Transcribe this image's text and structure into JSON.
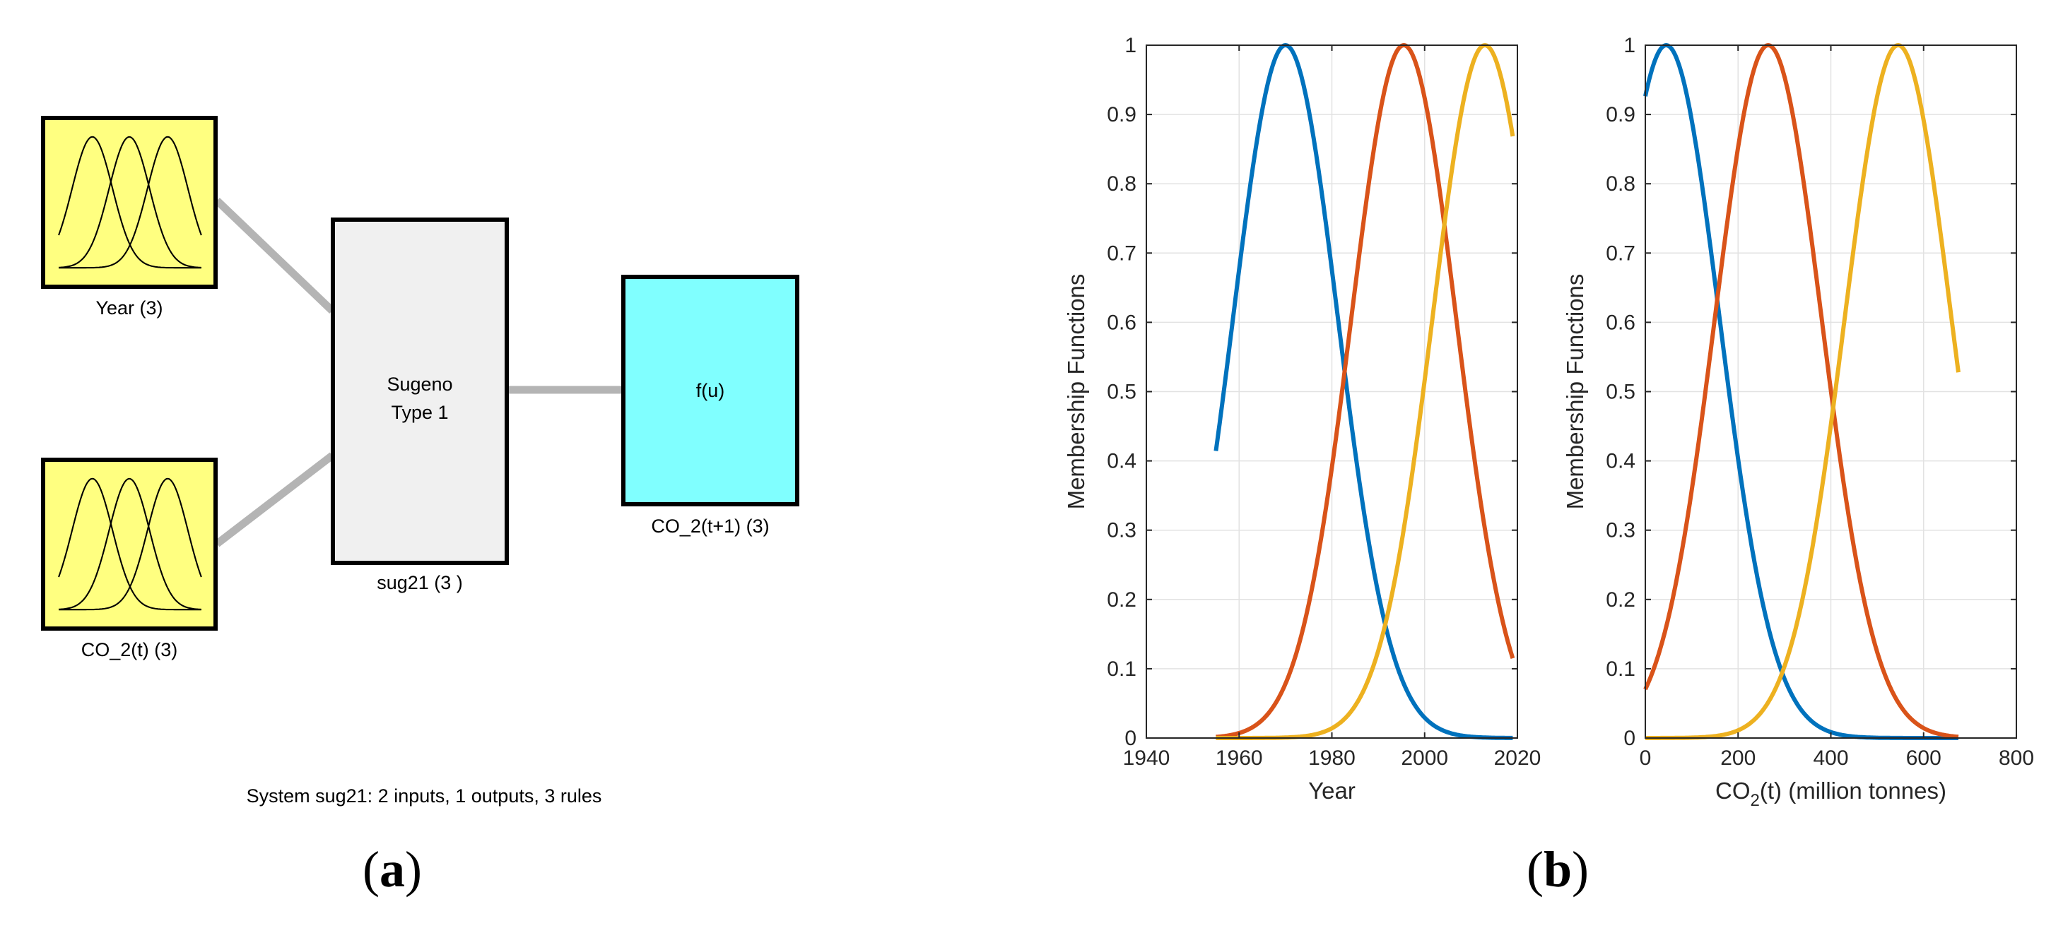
{
  "panel_a": {
    "label_open": "(",
    "label_letter": "a",
    "label_close": ")",
    "inputs": [
      {
        "name": "Year (3)",
        "icon": "membership-functions-icon"
      },
      {
        "name": "CO_2(t) (3)",
        "icon": "membership-functions-icon"
      }
    ],
    "engine": {
      "line1": "Sugeno",
      "line2": "Type 1",
      "name": "sug21 (3 )"
    },
    "output": {
      "function": "f(u)",
      "name": "CO_2(t+1) (3)"
    },
    "summary": "System sug21: 2 inputs, 1 outputs, 3 rules",
    "colors": {
      "input_fill": "#ffff80",
      "engine_fill": "#f0f0f0",
      "output_fill": "#80ffff",
      "connector": "#b4b4b4"
    }
  },
  "panel_b": {
    "label_open": "(",
    "label_letter": "b",
    "label_close": ")"
  },
  "chart_data": [
    {
      "type": "line",
      "xlabel": "Year",
      "ylabel": "Membership Functions",
      "xlim": [
        1940,
        2020
      ],
      "ylim": [
        0,
        1
      ],
      "xticks": [
        1940,
        1960,
        1980,
        2000,
        2020
      ],
      "yticks": [
        0,
        0.1,
        0.2,
        0.3,
        0.4,
        0.5,
        0.6,
        0.7,
        0.8,
        0.9,
        1
      ],
      "ytick_labels": [
        "0",
        "0.1",
        "0.2",
        "0.3",
        "0.4",
        "0.5",
        "0.6",
        "0.7",
        "0.8",
        "0.9",
        "1"
      ],
      "grid": true,
      "x_domain": [
        1955,
        2019
      ],
      "series": [
        {
          "color": "#0072bd",
          "shape": "gaussian",
          "center": 1970,
          "sigma": 11.3
        },
        {
          "color": "#d95319",
          "shape": "gaussian",
          "center": 1995.5,
          "sigma": 11.3
        },
        {
          "color": "#edb120",
          "shape": "gaussian",
          "center": 2013,
          "sigma": 11.3
        }
      ]
    },
    {
      "type": "line",
      "xlabel_main": "CO",
      "xlabel_sub": "2",
      "xlabel_rest": "(t) (million tonnes)",
      "ylabel": "Membership Functions",
      "xlim": [
        0,
        800
      ],
      "ylim": [
        0,
        1
      ],
      "xticks": [
        0,
        200,
        400,
        600,
        800
      ],
      "yticks": [
        0,
        0.1,
        0.2,
        0.3,
        0.4,
        0.5,
        0.6,
        0.7,
        0.8,
        0.9,
        1
      ],
      "ytick_labels": [
        "0",
        "0.1",
        "0.2",
        "0.3",
        "0.4",
        "0.5",
        "0.6",
        "0.7",
        "0.8",
        "0.9",
        "1"
      ],
      "grid": true,
      "x_domain": [
        0,
        675
      ],
      "series": [
        {
          "color": "#0072bd",
          "shape": "gaussian",
          "center": 45,
          "sigma": 115
        },
        {
          "color": "#d95319",
          "shape": "gaussian",
          "center": 265,
          "sigma": 115
        },
        {
          "color": "#edb120",
          "shape": "gaussian",
          "center": 545,
          "sigma": 115
        }
      ]
    }
  ]
}
